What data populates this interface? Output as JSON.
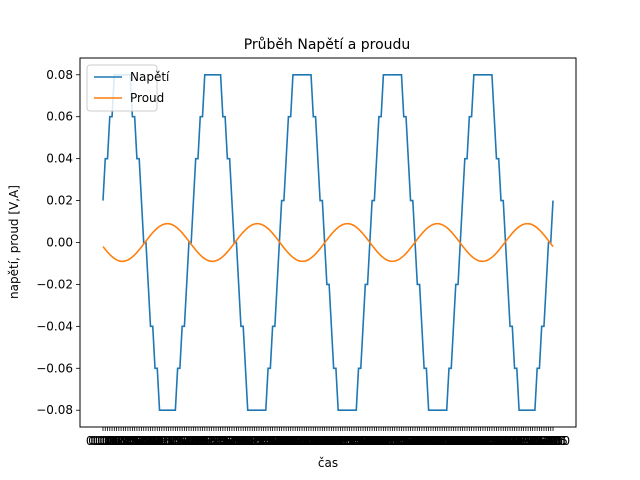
{
  "chart_data": {
    "type": "line",
    "title": "Průběh Napětí a proudu",
    "xlabel": "čas",
    "ylabel": "napětí, proud [V,A]",
    "ylim": [
      -0.088,
      0.088
    ],
    "yticks": [
      -0.08,
      -0.06,
      -0.04,
      -0.02,
      0.0,
      0.02,
      0.04,
      0.06,
      0.08
    ],
    "ytick_labels": [
      "−0.08",
      "−0.06",
      "−0.04",
      "−0.02",
      "0.00",
      "0.02",
      "0.04",
      "0.06",
      "0.08"
    ],
    "x": {
      "start": 0,
      "end": 1,
      "samples": 200,
      "periods": 5
    },
    "grid": false,
    "legend_position": "top-left",
    "series": [
      {
        "name": "Napětí",
        "color": "#1f77b4",
        "kind": "quantized-sine",
        "amplitude": 0.09,
        "step": 0.02,
        "phase": 0.22
      },
      {
        "name": "Proud",
        "color": "#ff7f0e",
        "kind": "sine",
        "amplitude": 0.009,
        "phase": 3.36
      }
    ]
  }
}
